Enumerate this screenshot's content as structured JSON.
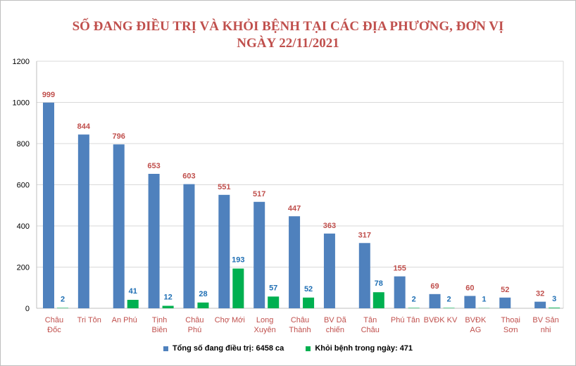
{
  "colors": {
    "title": "#c0504d",
    "series_treatment": "#4f81bd",
    "series_recovered": "#00b050",
    "label_treatment": "#c0504d",
    "label_recovered": "#1f6fb4",
    "xlabel": "#c0504d",
    "grid": "#d9d9d9"
  },
  "chart_data": {
    "type": "bar",
    "title": "SỐ ĐANG ĐIỀU TRỊ VÀ KHỎI BỆNH TẠI CÁC ĐỊA PHƯƠNG, ĐƠN VỊ",
    "subtitle": "NGÀY 22/11/2021",
    "xlabel": "",
    "ylabel": "",
    "ylim": [
      0,
      1200
    ],
    "yticks": [
      0,
      200,
      400,
      600,
      800,
      1000,
      1200
    ],
    "grid": true,
    "legend_position": "bottom",
    "categories": [
      [
        "Châu",
        "Đốc"
      ],
      [
        "Tri Tôn"
      ],
      [
        "An Phú"
      ],
      [
        "Tịnh",
        "Biên"
      ],
      [
        "Châu",
        "Phú"
      ],
      [
        "Chợ Mới"
      ],
      [
        "Long",
        "Xuyên"
      ],
      [
        "Châu",
        "Thành"
      ],
      [
        "BV Dã",
        "chiến"
      ],
      [
        "Tân",
        "Châu"
      ],
      [
        "Phú Tân"
      ],
      [
        "BVĐK KV"
      ],
      [
        "BVĐK",
        "AG"
      ],
      [
        "Thoại",
        "Sơn"
      ],
      [
        "BV Sản",
        "nhi"
      ]
    ],
    "series": [
      {
        "name": "Tổng số  đang điều trị:  6458 ca",
        "values": [
          999,
          844,
          796,
          653,
          603,
          551,
          517,
          447,
          363,
          317,
          155,
          69,
          60,
          52,
          32
        ],
        "labels": [
          "999",
          "844",
          "796",
          "653",
          "603",
          "551",
          "517",
          "447",
          "363",
          "317",
          "155",
          "69",
          "60",
          "52",
          "32"
        ]
      },
      {
        "name": "Khỏi bệnh trong ngày: 471",
        "values": [
          2,
          0,
          41,
          12,
          28,
          193,
          57,
          52,
          0,
          78,
          2,
          2,
          1,
          0,
          3
        ],
        "labels": [
          "2",
          "",
          "41",
          "12",
          "28",
          "193",
          "57",
          "52",
          "",
          "78",
          "2",
          "2",
          "1",
          "",
          "3"
        ]
      }
    ]
  }
}
